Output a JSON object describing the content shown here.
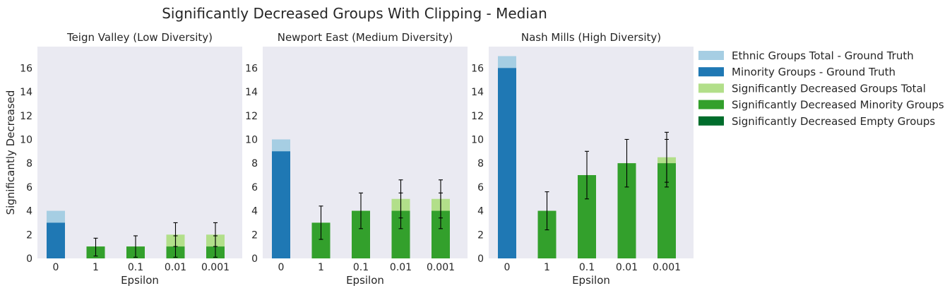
{
  "figure": {
    "title": "Significantly Decreased Groups With Clipping - Median"
  },
  "colors": {
    "ethnic_total": "#a6cee3",
    "minority": "#1f78b4",
    "sig_total": "#b2df8a",
    "sig_minority": "#33a02c",
    "sig_empty": "#006d2c",
    "panel_bg": "#eaeaf2",
    "error_bar": "#000000"
  },
  "legend": {
    "placement": "outside-right",
    "items": [
      {
        "label": "Ethnic Groups Total - Ground Truth",
        "color_key": "ethnic_total"
      },
      {
        "label": "Minority Groups - Ground Truth",
        "color_key": "minority"
      },
      {
        "label": "Significantly Decreased Groups Total",
        "color_key": "sig_total"
      },
      {
        "label": "Significantly Decreased Minority Groups",
        "color_key": "sig_minority"
      },
      {
        "label": "Significantly Decreased Empty Groups",
        "color_key": "sig_empty"
      }
    ]
  },
  "chart_data": [
    {
      "type": "bar",
      "title": "Teign Valley (Low Diversity)",
      "xlabel": "Epsilon",
      "ylabel": "Significantly Decreased",
      "categories": [
        "0",
        "1",
        "0.1",
        "0.01",
        "0.001"
      ],
      "ylim": [
        0,
        17.8
      ],
      "yticks": [
        0,
        2,
        4,
        6,
        8,
        10,
        12,
        14,
        16
      ],
      "grid": false,
      "ground_truth": {
        "ethnic_total": 4,
        "minority": 3
      },
      "series": [
        {
          "name": "Significantly Decreased Groups Total",
          "values": [
            null,
            1,
            1,
            2,
            2
          ],
          "err_low": [
            null,
            null,
            null,
            1.0,
            1.0
          ],
          "err_high": [
            null,
            null,
            null,
            3.0,
            3.0
          ]
        },
        {
          "name": "Significantly Decreased Minority Groups",
          "values": [
            null,
            1,
            1,
            1,
            1
          ],
          "err_low": [
            null,
            0.2,
            0.1,
            0.1,
            0.1
          ],
          "err_high": [
            null,
            1.7,
            1.9,
            1.9,
            1.9
          ]
        },
        {
          "name": "Significantly Decreased Empty Groups",
          "values": [
            null,
            0,
            0,
            0,
            0
          ]
        }
      ]
    },
    {
      "type": "bar",
      "title": "Newport East (Medium Diversity)",
      "xlabel": "Epsilon",
      "ylabel": "",
      "categories": [
        "0",
        "1",
        "0.1",
        "0.01",
        "0.001"
      ],
      "ylim": [
        0,
        17.8
      ],
      "yticks": [
        0,
        2,
        4,
        6,
        8,
        10,
        12,
        14,
        16
      ],
      "grid": false,
      "ground_truth": {
        "ethnic_total": 10,
        "minority": 9
      },
      "series": [
        {
          "name": "Significantly Decreased Groups Total",
          "values": [
            null,
            3,
            4,
            5,
            5
          ],
          "err_low": [
            null,
            null,
            null,
            3.4,
            3.4
          ],
          "err_high": [
            null,
            null,
            null,
            6.6,
            6.6
          ]
        },
        {
          "name": "Significantly Decreased Minority Groups",
          "values": [
            null,
            3,
            4,
            4,
            4
          ],
          "err_low": [
            null,
            1.6,
            2.5,
            2.5,
            2.5
          ],
          "err_high": [
            null,
            4.4,
            5.5,
            5.5,
            5.5
          ]
        },
        {
          "name": "Significantly Decreased Empty Groups",
          "values": [
            null,
            0,
            0,
            0,
            0
          ]
        }
      ]
    },
    {
      "type": "bar",
      "title": "Nash Mills (High Diversity)",
      "xlabel": "Epsilon",
      "ylabel": "",
      "categories": [
        "0",
        "1",
        "0.1",
        "0.01",
        "0.001"
      ],
      "ylim": [
        0,
        17.8
      ],
      "yticks": [
        0,
        2,
        4,
        6,
        8,
        10,
        12,
        14,
        16
      ],
      "grid": false,
      "ground_truth": {
        "ethnic_total": 17,
        "minority": 16
      },
      "series": [
        {
          "name": "Significantly Decreased Groups Total",
          "values": [
            null,
            4,
            7,
            8,
            8.5
          ],
          "err_low": [
            null,
            null,
            null,
            null,
            6.4
          ],
          "err_high": [
            null,
            null,
            null,
            null,
            10.6
          ]
        },
        {
          "name": "Significantly Decreased Minority Groups",
          "values": [
            null,
            4,
            7,
            8,
            8
          ],
          "err_low": [
            null,
            2.4,
            5.0,
            6.0,
            6.0
          ],
          "err_high": [
            null,
            5.6,
            9.0,
            10.0,
            10.0
          ]
        },
        {
          "name": "Significantly Decreased Empty Groups",
          "values": [
            null,
            0,
            0,
            0,
            0
          ]
        }
      ]
    }
  ]
}
